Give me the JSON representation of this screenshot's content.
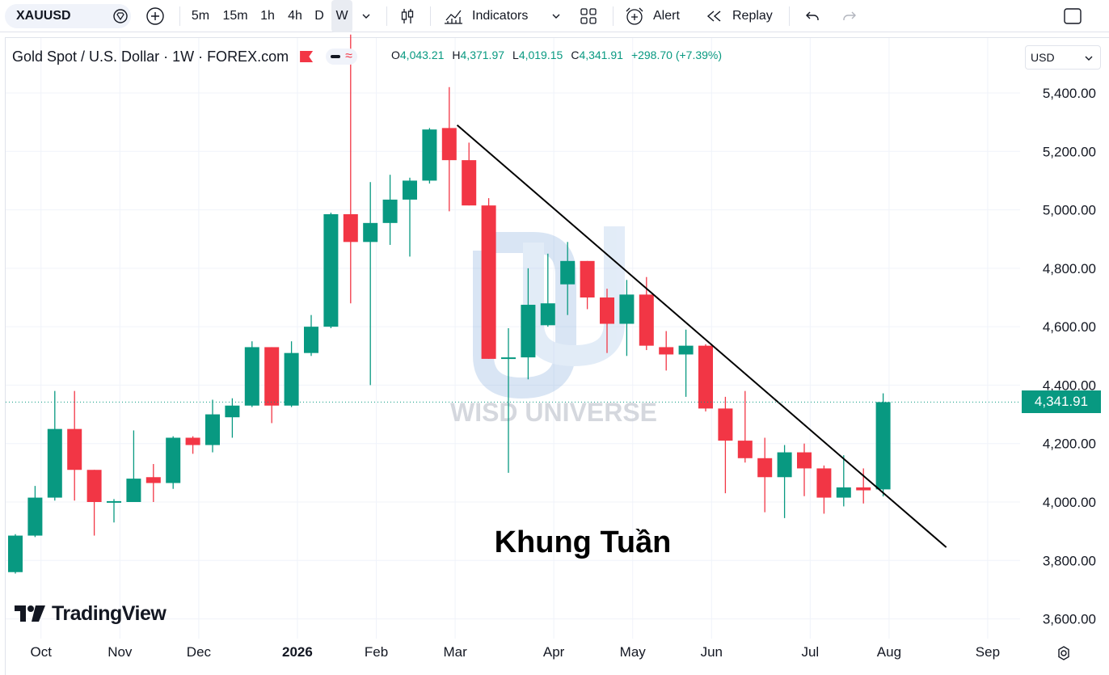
{
  "toolbar": {
    "symbol": "XAUUSD",
    "timeframes": [
      "5m",
      "15m",
      "1h",
      "4h",
      "D",
      "W"
    ],
    "active_timeframe": "W",
    "indicators_label": "Indicators",
    "alert_label": "Alert",
    "replay_label": "Replay"
  },
  "legend": {
    "title": "Gold Spot / U.S. Dollar · 1W · FOREX.com",
    "open_label": "O",
    "open": "4,043.21",
    "high_label": "H",
    "high": "4,371.97",
    "low_label": "L",
    "low": "4,019.15",
    "close_label": "C",
    "close": "4,341.91",
    "change": "+298.70 (+7.39%)"
  },
  "currency_select": "USD",
  "current_price_label": "4,341.91",
  "annotation": "Khung Tuần",
  "watermark": "WISD UNIVERSE",
  "brand": "TradingView",
  "colors": {
    "up": "#089981",
    "down": "#f23645",
    "text": "#131722",
    "grid": "#f0f3fa"
  },
  "chart_data": {
    "type": "candlestick",
    "y_ticks": [
      "5,400.00",
      "5,200.00",
      "5,000.00",
      "4,800.00",
      "4,600.00",
      "4,400.00",
      "4,200.00",
      "4,000.00",
      "3,800.00",
      "3,600.00"
    ],
    "y_tick_values": [
      5400,
      5200,
      5000,
      4800,
      4600,
      4400,
      4200,
      4000,
      3800,
      3600
    ],
    "x_ticks": [
      "Oct",
      "Nov",
      "Dec",
      "2026",
      "Feb",
      "Mar",
      "Apr",
      "May",
      "Jun",
      "Jul",
      "Aug",
      "Sep"
    ],
    "x_tick_index": [
      1.3,
      5.3,
      9.3,
      14.3,
      18.3,
      22.3,
      27.3,
      31.3,
      35.3,
      40.3,
      44.3,
      49.3
    ],
    "candles": [
      {
        "o": 3760,
        "h": 3890,
        "l": 3755,
        "c": 3885
      },
      {
        "o": 3885,
        "h": 4055,
        "l": 3880,
        "c": 4015
      },
      {
        "o": 4015,
        "h": 4380,
        "l": 4005,
        "c": 4250
      },
      {
        "o": 4250,
        "h": 4380,
        "l": 4005,
        "c": 4110
      },
      {
        "o": 4110,
        "h": 4110,
        "l": 3885,
        "c": 4000
      },
      {
        "o": 4000,
        "h": 4010,
        "l": 3930,
        "c": 4003
      },
      {
        "o": 4000,
        "h": 4245,
        "l": 4000,
        "c": 4080
      },
      {
        "o": 4085,
        "h": 4130,
        "l": 4000,
        "c": 4065
      },
      {
        "o": 4065,
        "h": 4225,
        "l": 4045,
        "c": 4220
      },
      {
        "o": 4220,
        "h": 4225,
        "l": 4165,
        "c": 4195
      },
      {
        "o": 4195,
        "h": 4350,
        "l": 4170,
        "c": 4300
      },
      {
        "o": 4290,
        "h": 4355,
        "l": 4220,
        "c": 4330
      },
      {
        "o": 4330,
        "h": 4550,
        "l": 4325,
        "c": 4530
      },
      {
        "o": 4530,
        "h": 4530,
        "l": 4270,
        "c": 4330
      },
      {
        "o": 4330,
        "h": 4550,
        "l": 4325,
        "c": 4510
      },
      {
        "o": 4510,
        "h": 4640,
        "l": 4500,
        "c": 4600
      },
      {
        "o": 4600,
        "h": 4990,
        "l": 4595,
        "c": 4985
      },
      {
        "o": 4985,
        "h": 5600,
        "l": 4680,
        "c": 4890
      },
      {
        "o": 4890,
        "h": 5095,
        "l": 4400,
        "c": 4955
      },
      {
        "o": 4955,
        "h": 5120,
        "l": 4880,
        "c": 5035
      },
      {
        "o": 5035,
        "h": 5110,
        "l": 4840,
        "c": 5100
      },
      {
        "o": 5100,
        "h": 5280,
        "l": 5090,
        "c": 5275
      },
      {
        "o": 5280,
        "h": 5420,
        "l": 4995,
        "c": 5170
      },
      {
        "o": 5170,
        "h": 5230,
        "l": 5015,
        "c": 5015
      },
      {
        "o": 5015,
        "h": 5040,
        "l": 4490,
        "c": 4490
      },
      {
        "o": 4495,
        "h": 4595,
        "l": 4100,
        "c": 4495
      },
      {
        "o": 4495,
        "h": 4800,
        "l": 4420,
        "c": 4675
      },
      {
        "o": 4605,
        "h": 4850,
        "l": 4600,
        "c": 4680
      },
      {
        "o": 4745,
        "h": 4890,
        "l": 4640,
        "c": 4825
      },
      {
        "o": 4825,
        "h": 4825,
        "l": 4660,
        "c": 4700
      },
      {
        "o": 4700,
        "h": 4730,
        "l": 4510,
        "c": 4610
      },
      {
        "o": 4610,
        "h": 4760,
        "l": 4500,
        "c": 4710
      },
      {
        "o": 4710,
        "h": 4770,
        "l": 4520,
        "c": 4535
      },
      {
        "o": 4530,
        "h": 4585,
        "l": 4450,
        "c": 4505
      },
      {
        "o": 4505,
        "h": 4590,
        "l": 4360,
        "c": 4535
      },
      {
        "o": 4535,
        "h": 4540,
        "l": 4310,
        "c": 4320
      },
      {
        "o": 4320,
        "h": 4360,
        "l": 4030,
        "c": 4210
      },
      {
        "o": 4210,
        "h": 4380,
        "l": 4135,
        "c": 4150
      },
      {
        "o": 4150,
        "h": 4220,
        "l": 3965,
        "c": 4085
      },
      {
        "o": 4085,
        "h": 4195,
        "l": 3945,
        "c": 4170
      },
      {
        "o": 4170,
        "h": 4200,
        "l": 4020,
        "c": 4115
      },
      {
        "o": 4115,
        "h": 4125,
        "l": 3960,
        "c": 4015
      },
      {
        "o": 4015,
        "h": 4160,
        "l": 3985,
        "c": 4050
      },
      {
        "o": 4050,
        "h": 4115,
        "l": 3995,
        "c": 4040
      },
      {
        "o": 4043.21,
        "h": 4371.97,
        "l": 4019.15,
        "c": 4341.91
      }
    ],
    "trendline": {
      "x0_index": 22.4,
      "y0": 5290,
      "x1_index": 47.2,
      "y1": 3845
    }
  }
}
